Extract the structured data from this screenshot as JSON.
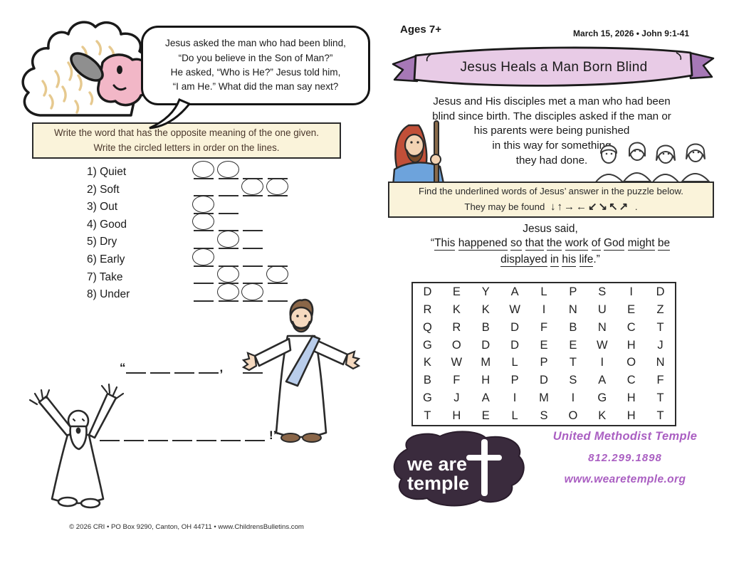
{
  "left_page": {
    "speech_bubble": {
      "lines": [
        "Jesus asked the man who had been blind,",
        "“Do you believe in the Son of Man?”",
        "He asked, “Who is He?” Jesus told him,",
        "“I am He.” What did the man say next?"
      ]
    },
    "instruction_box": {
      "line1": "Write the word that has the opposite meaning of the one given.",
      "line2": "Write the circled letters in order on the lines."
    },
    "opposites": {
      "items": [
        {
          "num": "1)",
          "word": "Quiet",
          "blanks": 4,
          "circles": [
            1,
            2
          ]
        },
        {
          "num": "2)",
          "word": "Soft",
          "blanks": 4,
          "circles": [
            3,
            4
          ]
        },
        {
          "num": "3)",
          "word": "Out",
          "blanks": 2,
          "circles": [
            1
          ]
        },
        {
          "num": "4)",
          "word": "Good",
          "blanks": 3,
          "circles": [
            1
          ]
        },
        {
          "num": "5)",
          "word": "Dry",
          "blanks": 3,
          "circles": [
            2
          ]
        },
        {
          "num": "6)",
          "word": "Early",
          "blanks": 4,
          "circles": [
            1
          ]
        },
        {
          "num": "7)",
          "word": "Take",
          "blanks": 4,
          "circles": [
            2,
            4
          ]
        },
        {
          "num": "8)",
          "word": "Under",
          "blanks": 4,
          "circles": [
            2,
            3
          ]
        }
      ]
    },
    "answer": {
      "open_quote": "“",
      "line1_blanks": 4,
      "line1_comma": ",",
      "line1_extra_blanks": 1,
      "line2_blanks": 7,
      "line2_end": "!”"
    },
    "footer": "© 2026 CRI • PO Box 9290, Canton, OH 44711 • www.ChildrensBulletins.com"
  },
  "right_page": {
    "ages": "Ages 7+",
    "date_ref": "March 15, 2026 • John 9:1-41",
    "banner_title": "Jesus Heals a Man Born Blind",
    "intro_lines": [
      "Jesus and His disciples met a man who had been",
      "blind since birth. The disciples asked if the man or",
      "his parents were being punished",
      "in this way for something",
      "they had done."
    ],
    "find_box": {
      "line1": "Find the underlined words of Jesus’ answer in the puzzle below.",
      "line2_prefix": "They may be found",
      "arrows": "↓↑→←↙↘↖↗",
      "line2_suffix": "."
    },
    "quote": {
      "intro": "Jesus said,",
      "open_quote": "“",
      "line1_words": [
        "This",
        "happened",
        "so",
        "that",
        "the",
        "work",
        "of",
        "God",
        "might",
        "be"
      ],
      "line2_words": [
        "displayed",
        "in",
        "his",
        "life"
      ],
      "close": ".”"
    },
    "word_search": {
      "rows": [
        "DEYALPSID",
        "RKKWINUEZ",
        "QRBDFBNCT",
        "GODDEEWHJ",
        "KWMLPTION",
        "BFHPDSACF",
        "GJAIMIGHT",
        "THELSOKHT"
      ]
    },
    "logo": {
      "line1": "we are",
      "line2": "temple"
    },
    "church": {
      "name": "United Methodist Temple",
      "phone": "812.299.1898",
      "website": "www.wearetemple.org"
    }
  },
  "colors": {
    "banner_fill": "#e8cbe6",
    "banner_fold": "#a678b6",
    "cream_box": "#faf3da",
    "church_purple": "#aa5fc2",
    "logo_bg": "#3a2b3d"
  }
}
